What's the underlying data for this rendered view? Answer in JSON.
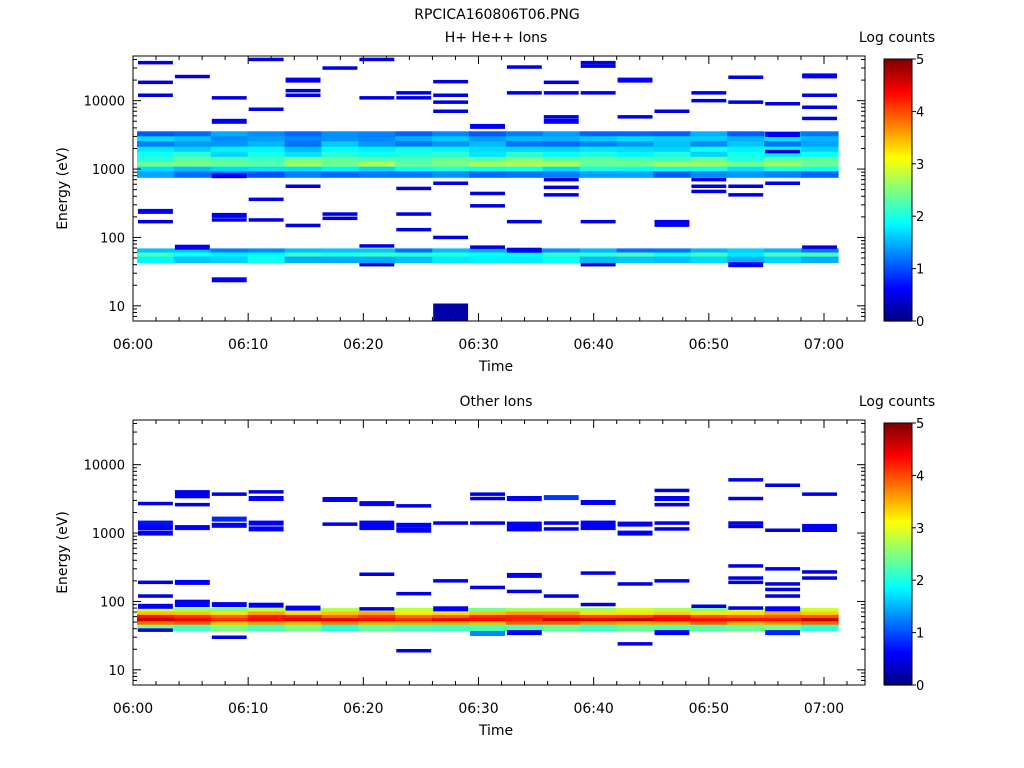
{
  "figure_title": "RPCICA160806T06.PNG",
  "colormap": [
    "#00007f",
    "#0000ff",
    "#007fff",
    "#00ffff",
    "#7fff7f",
    "#ffff00",
    "#ff7f00",
    "#ff0000",
    "#7f0000"
  ],
  "chart_data": [
    {
      "type": "heatmap",
      "title": "H+ He++ Ions",
      "xlabel": "Time",
      "ylabel": "Energy (eV)",
      "x_tick_labels": [
        "06:00",
        "06:10",
        "06:20",
        "06:30",
        "06:40",
        "06:50",
        "07:00"
      ],
      "y_tick_labels": [
        "10",
        "100",
        "1000",
        "10000"
      ],
      "y_scale": "log",
      "ylim": [
        6,
        45000
      ],
      "colorbar": {
        "label": "Log counts",
        "ticks": [
          "0",
          "1",
          "2",
          "3",
          "4",
          "5"
        ],
        "range": [
          0,
          5
        ]
      },
      "time_bins": 19,
      "bands": [
        {
          "e": 3200,
          "v": 1.3
        },
        {
          "e": 2700,
          "v": 1.5
        },
        {
          "e": 2300,
          "v": 1.4
        },
        {
          "e": 1900,
          "v": 1.7
        },
        {
          "e": 1600,
          "v": 1.9
        },
        {
          "e": 1350,
          "v": 2.3
        },
        {
          "e": 1150,
          "v": 2.5
        },
        {
          "e": 970,
          "v": 1.8
        },
        {
          "e": 830,
          "v": 1.2
        },
        {
          "e": 62,
          "v": 1.4
        },
        {
          "e": 54,
          "v": 2.0
        },
        {
          "e": 47,
          "v": 1.7
        }
      ],
      "scatter": [
        {
          "t": 0,
          "e": 36000,
          "v": 0.5
        },
        {
          "t": 0,
          "e": 18500,
          "v": 0.5
        },
        {
          "t": 0,
          "e": 12000,
          "v": 0.5
        },
        {
          "t": 0,
          "e": 240,
          "v": 0.6
        },
        {
          "t": 0,
          "e": 170,
          "v": 0.5
        },
        {
          "t": 1,
          "e": 22500,
          "v": 0.5
        },
        {
          "t": 1,
          "e": 72,
          "v": 0.6
        },
        {
          "t": 2,
          "e": 11000,
          "v": 0.5
        },
        {
          "t": 2,
          "e": 5000,
          "v": 0.6
        },
        {
          "t": 2,
          "e": 800,
          "v": 0.6
        },
        {
          "t": 2,
          "e": 210,
          "v": 0.6
        },
        {
          "t": 2,
          "e": 180,
          "v": 0.5
        },
        {
          "t": 2,
          "e": 24,
          "v": 0.6
        },
        {
          "t": 3,
          "e": 40000,
          "v": 0.5
        },
        {
          "t": 3,
          "e": 7500,
          "v": 0.5
        },
        {
          "t": 3,
          "e": 360,
          "v": 0.5
        },
        {
          "t": 3,
          "e": 180,
          "v": 0.5
        },
        {
          "t": 4,
          "e": 20000,
          "v": 0.6
        },
        {
          "t": 4,
          "e": 14000,
          "v": 0.5
        },
        {
          "t": 4,
          "e": 12000,
          "v": 0.5
        },
        {
          "t": 4,
          "e": 560,
          "v": 0.5
        },
        {
          "t": 4,
          "e": 150,
          "v": 0.5
        },
        {
          "t": 5,
          "e": 30000,
          "v": 0.5
        },
        {
          "t": 5,
          "e": 220,
          "v": 0.5
        },
        {
          "t": 5,
          "e": 190,
          "v": 0.5
        },
        {
          "t": 6,
          "e": 40000,
          "v": 0.5
        },
        {
          "t": 6,
          "e": 11000,
          "v": 0.5
        },
        {
          "t": 6,
          "e": 75,
          "v": 0.5
        },
        {
          "t": 6,
          "e": 40,
          "v": 0.5
        },
        {
          "t": 7,
          "e": 13000,
          "v": 0.5
        },
        {
          "t": 7,
          "e": 11000,
          "v": 0.5
        },
        {
          "t": 7,
          "e": 520,
          "v": 0.5
        },
        {
          "t": 7,
          "e": 220,
          "v": 0.5
        },
        {
          "t": 7,
          "e": 130,
          "v": 0.5
        },
        {
          "t": 8,
          "e": 19000,
          "v": 0.5
        },
        {
          "t": 8,
          "e": 12000,
          "v": 0.5
        },
        {
          "t": 8,
          "e": 9500,
          "v": 0.5
        },
        {
          "t": 8,
          "e": 7000,
          "v": 0.5
        },
        {
          "t": 8,
          "e": 620,
          "v": 0.5
        },
        {
          "t": 8,
          "e": 100,
          "v": 0.5
        },
        {
          "t": 8,
          "e": 8,
          "v": 0.2
        },
        {
          "t": 9,
          "e": 4200,
          "v": 0.6
        },
        {
          "t": 9,
          "e": 440,
          "v": 0.5
        },
        {
          "t": 9,
          "e": 290,
          "v": 0.5
        },
        {
          "t": 9,
          "e": 72,
          "v": 0.5
        },
        {
          "t": 10,
          "e": 31000,
          "v": 0.5
        },
        {
          "t": 10,
          "e": 13000,
          "v": 0.5
        },
        {
          "t": 10,
          "e": 170,
          "v": 0.5
        },
        {
          "t": 10,
          "e": 65,
          "v": 0.6
        },
        {
          "t": 11,
          "e": 18500,
          "v": 0.5
        },
        {
          "t": 11,
          "e": 13000,
          "v": 0.5
        },
        {
          "t": 11,
          "e": 5800,
          "v": 0.5
        },
        {
          "t": 11,
          "e": 5000,
          "v": 0.6
        },
        {
          "t": 11,
          "e": 700,
          "v": 0.5
        },
        {
          "t": 11,
          "e": 540,
          "v": 0.5
        },
        {
          "t": 11,
          "e": 420,
          "v": 0.5
        },
        {
          "t": 12,
          "e": 36000,
          "v": 0.5
        },
        {
          "t": 12,
          "e": 32000,
          "v": 0.5
        },
        {
          "t": 12,
          "e": 13000,
          "v": 0.5
        },
        {
          "t": 12,
          "e": 170,
          "v": 0.5
        },
        {
          "t": 12,
          "e": 40,
          "v": 0.5
        },
        {
          "t": 13,
          "e": 20000,
          "v": 0.6
        },
        {
          "t": 13,
          "e": 5800,
          "v": 0.5
        },
        {
          "t": 14,
          "e": 7000,
          "v": 0.5
        },
        {
          "t": 14,
          "e": 170,
          "v": 0.5
        },
        {
          "t": 14,
          "e": 155,
          "v": 0.6
        },
        {
          "t": 15,
          "e": 13000,
          "v": 0.5
        },
        {
          "t": 15,
          "e": 10000,
          "v": 0.5
        },
        {
          "t": 15,
          "e": 700,
          "v": 0.5
        },
        {
          "t": 15,
          "e": 560,
          "v": 0.5
        },
        {
          "t": 15,
          "e": 470,
          "v": 0.5
        },
        {
          "t": 16,
          "e": 22000,
          "v": 0.5
        },
        {
          "t": 16,
          "e": 9500,
          "v": 0.5
        },
        {
          "t": 16,
          "e": 560,
          "v": 0.5
        },
        {
          "t": 16,
          "e": 420,
          "v": 0.5
        },
        {
          "t": 16,
          "e": 40,
          "v": 0.6
        },
        {
          "t": 17,
          "e": 9000,
          "v": 0.5
        },
        {
          "t": 17,
          "e": 3200,
          "v": 0.6
        },
        {
          "t": 17,
          "e": 1800,
          "v": 0.4
        },
        {
          "t": 17,
          "e": 620,
          "v": 0.5
        },
        {
          "t": 18,
          "e": 23000,
          "v": 0.6
        },
        {
          "t": 18,
          "e": 12000,
          "v": 0.5
        },
        {
          "t": 18,
          "e": 8000,
          "v": 0.5
        },
        {
          "t": 18,
          "e": 5500,
          "v": 0.5
        },
        {
          "t": 18,
          "e": 72,
          "v": 0.5
        }
      ]
    },
    {
      "type": "heatmap",
      "title": "Other Ions",
      "xlabel": "Time",
      "ylabel": "Energy (eV)",
      "x_tick_labels": [
        "06:00",
        "06:10",
        "06:20",
        "06:30",
        "06:40",
        "06:50",
        "07:00"
      ],
      "y_tick_labels": [
        "10",
        "100",
        "1000",
        "10000"
      ],
      "y_scale": "log",
      "ylim": [
        6,
        45000
      ],
      "colorbar": {
        "label": "Log counts",
        "ticks": [
          "0",
          "1",
          "2",
          "3",
          "4",
          "5"
        ],
        "range": [
          0,
          5
        ]
      },
      "time_bins": 19,
      "bands": [
        {
          "e": 72,
          "v": 2.7
        },
        {
          "e": 64,
          "v": 3.4
        },
        {
          "e": 57,
          "v": 4.1
        },
        {
          "e": 51,
          "v": 4.4
        },
        {
          "e": 46,
          "v": 3.7
        },
        {
          "e": 41,
          "v": 2.3
        }
      ],
      "scatter": [
        {
          "t": 0,
          "e": 2700,
          "v": 0.5
        },
        {
          "t": 0,
          "e": 1400,
          "v": 0.7
        },
        {
          "t": 0,
          "e": 1200,
          "v": 0.6
        },
        {
          "t": 0,
          "e": 1000,
          "v": 0.6
        },
        {
          "t": 0,
          "e": 190,
          "v": 0.5
        },
        {
          "t": 0,
          "e": 120,
          "v": 0.5
        },
        {
          "t": 0,
          "e": 85,
          "v": 0.6
        },
        {
          "t": 0,
          "e": 38,
          "v": 0.5
        },
        {
          "t": 1,
          "e": 4000,
          "v": 0.5
        },
        {
          "t": 1,
          "e": 3500,
          "v": 0.6
        },
        {
          "t": 1,
          "e": 2600,
          "v": 0.5
        },
        {
          "t": 1,
          "e": 1200,
          "v": 0.6
        },
        {
          "t": 1,
          "e": 190,
          "v": 0.6
        },
        {
          "t": 1,
          "e": 100,
          "v": 0.5
        },
        {
          "t": 1,
          "e": 90,
          "v": 0.6
        },
        {
          "t": 2,
          "e": 3700,
          "v": 0.5
        },
        {
          "t": 2,
          "e": 1600,
          "v": 0.8
        },
        {
          "t": 2,
          "e": 1300,
          "v": 0.6
        },
        {
          "t": 2,
          "e": 90,
          "v": 0.6
        },
        {
          "t": 2,
          "e": 30,
          "v": 0.5
        },
        {
          "t": 3,
          "e": 4000,
          "v": 0.5
        },
        {
          "t": 3,
          "e": 3200,
          "v": 0.6
        },
        {
          "t": 3,
          "e": 1400,
          "v": 0.6
        },
        {
          "t": 3,
          "e": 1150,
          "v": 0.6
        },
        {
          "t": 3,
          "e": 88,
          "v": 0.6
        },
        {
          "t": 4,
          "e": 80,
          "v": 0.6
        },
        {
          "t": 5,
          "e": 3100,
          "v": 0.6
        },
        {
          "t": 5,
          "e": 1350,
          "v": 0.5
        },
        {
          "t": 6,
          "e": 2700,
          "v": 0.6
        },
        {
          "t": 6,
          "e": 1400,
          "v": 0.6
        },
        {
          "t": 6,
          "e": 1200,
          "v": 0.6
        },
        {
          "t": 6,
          "e": 250,
          "v": 0.5
        },
        {
          "t": 6,
          "e": 78,
          "v": 0.5
        },
        {
          "t": 7,
          "e": 2500,
          "v": 0.5
        },
        {
          "t": 7,
          "e": 1300,
          "v": 0.6
        },
        {
          "t": 7,
          "e": 1100,
          "v": 0.6
        },
        {
          "t": 7,
          "e": 130,
          "v": 0.5
        },
        {
          "t": 7,
          "e": 19,
          "v": 0.5
        },
        {
          "t": 8,
          "e": 1400,
          "v": 0.5
        },
        {
          "t": 8,
          "e": 200,
          "v": 0.5
        },
        {
          "t": 8,
          "e": 78,
          "v": 0.6
        },
        {
          "t": 9,
          "e": 3700,
          "v": 0.5
        },
        {
          "t": 9,
          "e": 3200,
          "v": 0.5
        },
        {
          "t": 9,
          "e": 1400,
          "v": 0.5
        },
        {
          "t": 9,
          "e": 160,
          "v": 0.5
        },
        {
          "t": 9,
          "e": 34,
          "v": 1.3
        },
        {
          "t": 10,
          "e": 3200,
          "v": 0.6
        },
        {
          "t": 10,
          "e": 1350,
          "v": 0.6
        },
        {
          "t": 10,
          "e": 1150,
          "v": 0.6
        },
        {
          "t": 10,
          "e": 240,
          "v": 0.6
        },
        {
          "t": 10,
          "e": 140,
          "v": 0.5
        },
        {
          "t": 10,
          "e": 35,
          "v": 0.6
        },
        {
          "t": 11,
          "e": 3300,
          "v": 0.9
        },
        {
          "t": 11,
          "e": 1400,
          "v": 0.5
        },
        {
          "t": 11,
          "e": 1150,
          "v": 0.5
        },
        {
          "t": 11,
          "e": 120,
          "v": 0.5
        },
        {
          "t": 12,
          "e": 2800,
          "v": 0.6
        },
        {
          "t": 12,
          "e": 1400,
          "v": 0.6
        },
        {
          "t": 12,
          "e": 1200,
          "v": 0.6
        },
        {
          "t": 12,
          "e": 260,
          "v": 0.5
        },
        {
          "t": 12,
          "e": 90,
          "v": 0.5
        },
        {
          "t": 13,
          "e": 1350,
          "v": 0.6
        },
        {
          "t": 13,
          "e": 1000,
          "v": 0.6
        },
        {
          "t": 13,
          "e": 180,
          "v": 0.5
        },
        {
          "t": 13,
          "e": 24,
          "v": 0.5
        },
        {
          "t": 14,
          "e": 4200,
          "v": 0.5
        },
        {
          "t": 14,
          "e": 3200,
          "v": 0.6
        },
        {
          "t": 14,
          "e": 2600,
          "v": 0.5
        },
        {
          "t": 14,
          "e": 1400,
          "v": 0.5
        },
        {
          "t": 14,
          "e": 1150,
          "v": 0.5
        },
        {
          "t": 14,
          "e": 200,
          "v": 0.5
        },
        {
          "t": 14,
          "e": 35,
          "v": 0.6
        },
        {
          "t": 15,
          "e": 85,
          "v": 0.5
        },
        {
          "t": 16,
          "e": 6000,
          "v": 0.5
        },
        {
          "t": 16,
          "e": 3200,
          "v": 0.5
        },
        {
          "t": 16,
          "e": 1400,
          "v": 0.5
        },
        {
          "t": 16,
          "e": 1250,
          "v": 0.5
        },
        {
          "t": 16,
          "e": 330,
          "v": 0.5
        },
        {
          "t": 16,
          "e": 220,
          "v": 0.5
        },
        {
          "t": 16,
          "e": 190,
          "v": 0.5
        },
        {
          "t": 16,
          "e": 80,
          "v": 0.5
        },
        {
          "t": 17,
          "e": 5000,
          "v": 0.5
        },
        {
          "t": 17,
          "e": 1100,
          "v": 0.5
        },
        {
          "t": 17,
          "e": 300,
          "v": 0.5
        },
        {
          "t": 17,
          "e": 180,
          "v": 0.5
        },
        {
          "t": 17,
          "e": 150,
          "v": 0.5
        },
        {
          "t": 17,
          "e": 120,
          "v": 0.5
        },
        {
          "t": 17,
          "e": 78,
          "v": 0.6
        },
        {
          "t": 17,
          "e": 35,
          "v": 0.8
        },
        {
          "t": 18,
          "e": 3700,
          "v": 0.5
        },
        {
          "t": 18,
          "e": 1250,
          "v": 0.6
        },
        {
          "t": 18,
          "e": 1100,
          "v": 0.5
        },
        {
          "t": 18,
          "e": 270,
          "v": 0.5
        },
        {
          "t": 18,
          "e": 220,
          "v": 0.5
        }
      ]
    }
  ]
}
